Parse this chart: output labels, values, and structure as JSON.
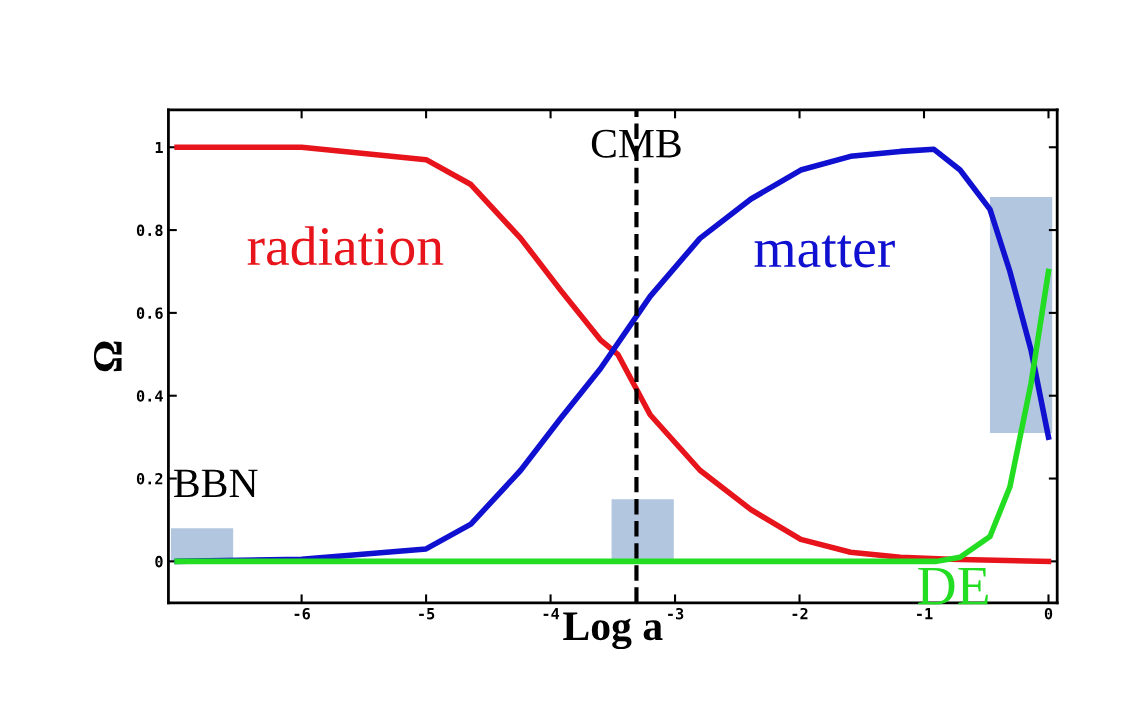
{
  "chart_data": {
    "type": "line",
    "xlabel": "Log a",
    "ylabel": "Ω",
    "xlim": [
      -7.07,
      0.07
    ],
    "ylim": [
      -0.1,
      1.09
    ],
    "xticks": [
      -6,
      -5,
      -4,
      -3,
      -2,
      -1,
      0
    ],
    "yticks": [
      0,
      0.2,
      0.4,
      0.6,
      0.8,
      1
    ],
    "grid": false,
    "legend": false,
    "marker": "none",
    "line_style": "solid",
    "series": [
      {
        "name": "radiation",
        "color": "#e8141c",
        "x": [
          -7,
          -6,
          -5,
          -4.64,
          -4.24,
          -3.92,
          -3.6,
          -3.46,
          -3.2,
          -2.8,
          -2.39,
          -1.99,
          -1.59,
          -1.19,
          -0.79,
          0
        ],
        "values": [
          1,
          1,
          0.97,
          0.91,
          0.78,
          0.655,
          0.535,
          0.5,
          0.354,
          0.22,
          0.125,
          0.053,
          0.022,
          0.01,
          0.005,
          0
        ]
      },
      {
        "name": "matter",
        "color": "#1010d0",
        "x": [
          -7,
          -6,
          -5,
          -4.64,
          -4.24,
          -3.92,
          -3.6,
          -3.2,
          -2.8,
          -2.39,
          -1.99,
          -1.59,
          -1.19,
          -0.92,
          -0.71,
          -0.47,
          -0.31,
          -0.14,
          0
        ],
        "values": [
          0,
          0.005,
          0.03,
          0.09,
          0.22,
          0.345,
          0.465,
          0.64,
          0.78,
          0.875,
          0.945,
          0.978,
          0.99,
          0.995,
          0.945,
          0.85,
          0.7,
          0.51,
          0.3
        ]
      },
      {
        "name": "DE",
        "color": "#22dd22",
        "x": [
          -7,
          -0.9,
          -0.71,
          -0.47,
          -0.31,
          -0.14,
          0
        ],
        "values": [
          0,
          0,
          0.01,
          0.06,
          0.18,
          0.43,
          0.7
        ]
      },
      {
        "type": "bar",
        "color": "#9fb8d8",
        "x": [
          -6.8,
          -3.26,
          -0.22
        ],
        "base": [
          0,
          0,
          0.31
        ],
        "values": [
          0.08,
          0.15,
          0.57
        ]
      }
    ],
    "ref_lines": [
      {
        "axis": "x",
        "value": -3.31,
        "color": "#000000",
        "line_style": "dashed"
      }
    ],
    "annotations": [
      "BBN",
      {
        "text": "CMB",
        "x": -3.31,
        "y": 1.0
      }
    ]
  }
}
